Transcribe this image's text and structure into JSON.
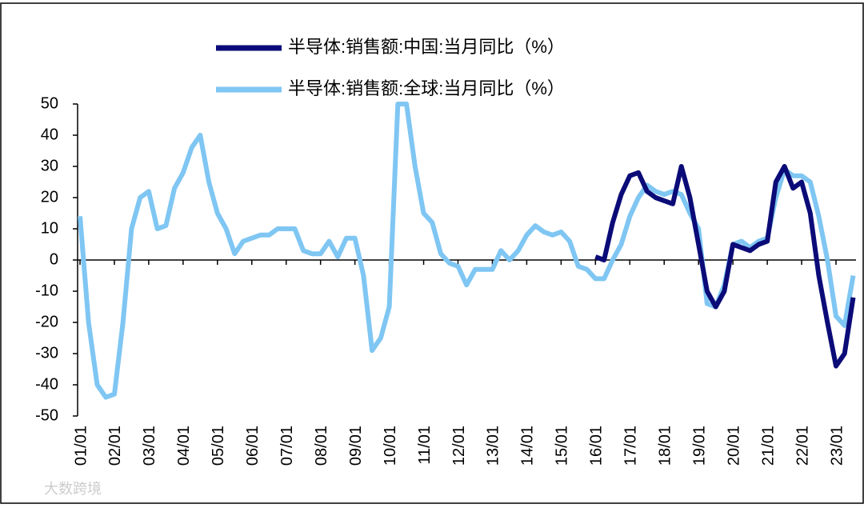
{
  "chart_data": {
    "type": "line",
    "legend_position": "top",
    "watermark": "大数跨境",
    "categories": [
      "01/01",
      null,
      null,
      null,
      "02/01",
      null,
      null,
      null,
      "03/01",
      null,
      null,
      null,
      "04/01",
      null,
      null,
      null,
      "05/01",
      null,
      null,
      null,
      "06/01",
      null,
      null,
      null,
      "07/01",
      null,
      null,
      null,
      "08/01",
      null,
      null,
      null,
      "09/01",
      null,
      null,
      null,
      "10/01",
      null,
      null,
      null,
      "11/01",
      null,
      null,
      null,
      "12/01",
      null,
      null,
      null,
      "13/01",
      null,
      null,
      null,
      "14/01",
      null,
      null,
      null,
      "15/01",
      null,
      null,
      null,
      "16/01",
      null,
      null,
      null,
      "17/01",
      null,
      null,
      null,
      "18/01",
      null,
      null,
      null,
      "19/01",
      null,
      null,
      null,
      "20/01",
      null,
      null,
      null,
      "21/01",
      null,
      null,
      null,
      "22/01",
      null,
      null,
      null,
      "23/01",
      null,
      null
    ],
    "series": [
      {
        "name": "半导体:销售额:中国:当月同比（%）",
        "color": "#0b0b78",
        "values": [
          null,
          null,
          null,
          null,
          null,
          null,
          null,
          null,
          null,
          null,
          null,
          null,
          null,
          null,
          null,
          null,
          null,
          null,
          null,
          null,
          null,
          null,
          null,
          null,
          null,
          null,
          null,
          null,
          null,
          null,
          null,
          null,
          null,
          null,
          null,
          null,
          null,
          null,
          null,
          null,
          null,
          null,
          null,
          null,
          null,
          null,
          null,
          null,
          null,
          null,
          null,
          null,
          null,
          null,
          null,
          null,
          null,
          null,
          null,
          null,
          1,
          0,
          12,
          21,
          27,
          28,
          22,
          20,
          19,
          18,
          30,
          20,
          5,
          -10,
          -15,
          -10,
          5,
          4,
          3,
          5,
          6,
          25,
          30,
          23,
          25,
          15,
          -5,
          -20,
          -34,
          -30,
          -12
        ]
      },
      {
        "name": "半导体:销售额:全球:当月同比（%）",
        "color": "#7fc6f3",
        "values": [
          14,
          -20,
          -40,
          -44,
          -43,
          -20,
          10,
          20,
          22,
          10,
          11,
          23,
          28,
          36,
          40,
          25,
          15,
          10,
          2,
          6,
          7,
          8,
          8,
          10,
          10,
          10,
          3,
          2,
          2,
          6,
          1,
          7,
          7,
          -5,
          -29,
          -25,
          -15,
          50,
          50,
          30,
          15,
          12,
          2,
          -1,
          -2,
          -8,
          -3,
          -3,
          -3,
          3,
          0,
          3,
          8,
          11,
          9,
          8,
          9,
          6,
          -2,
          -3,
          -6,
          -6,
          0,
          5,
          14,
          20,
          24,
          22,
          21,
          22,
          21,
          15,
          10,
          -14,
          -15,
          -8,
          5,
          6,
          4,
          6,
          7,
          20,
          29,
          27,
          27,
          25,
          14,
          0,
          -18,
          -21,
          -5
        ]
      }
    ],
    "ylim": [
      -50,
      50
    ],
    "yticks": [
      -50,
      -40,
      -30,
      -20,
      -10,
      0,
      10,
      20,
      30,
      40,
      50
    ]
  }
}
